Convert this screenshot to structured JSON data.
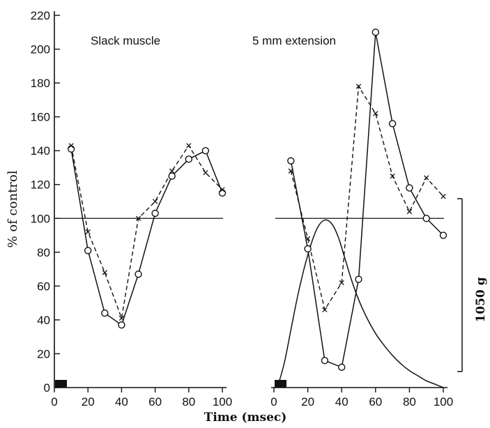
{
  "chart_data": {
    "type": "line",
    "xlabel": "Time (msec)",
    "ylabel": "% of control",
    "scale_bar_label": "1050 g",
    "y_ticks": [
      0,
      20,
      40,
      60,
      80,
      100,
      120,
      140,
      160,
      180,
      200,
      220
    ],
    "x_ticks": [
      0,
      20,
      40,
      60,
      80,
      100
    ],
    "ylim": [
      0,
      220
    ],
    "xlim": [
      0,
      100
    ],
    "reference_line": 100,
    "grid": false,
    "panels": [
      {
        "title": "Slack muscle",
        "series": [
          {
            "style": "solid-circles",
            "x": [
              10,
              20,
              30,
              40,
              50,
              60,
              70,
              80,
              90,
              100
            ],
            "y": [
              141,
              81,
              44,
              37,
              67,
              103,
              125,
              135,
              140,
              115
            ]
          },
          {
            "style": "dashed-crosses",
            "x": [
              10,
              20,
              30,
              40,
              50,
              60,
              70,
              80,
              90,
              100
            ],
            "y": [
              143,
              92,
              68,
              41,
              100,
              110,
              128,
              143,
              127,
              117
            ]
          }
        ]
      },
      {
        "title": "5 mm extension",
        "series": [
          {
            "style": "solid-circles",
            "x": [
              10,
              20,
              30,
              40,
              50,
              60,
              70,
              80,
              90,
              100
            ],
            "y": [
              134,
              82,
              16,
              12,
              64,
              210,
              156,
              118,
              100,
              90
            ]
          },
          {
            "style": "dashed-crosses",
            "x": [
              10,
              20,
              30,
              40,
              50,
              60,
              70,
              80,
              90,
              100
            ],
            "y": [
              128,
              88,
              46,
              62,
              178,
              162,
              125,
              104,
              124,
              113
            ]
          },
          {
            "style": "twitch-curve",
            "x": [
              2,
              6,
              10,
              14,
              18,
              22,
              26,
              30,
              34,
              38,
              42,
              46,
              50,
              55,
              60,
              65,
              70,
              75,
              80,
              85,
              90,
              95,
              100
            ],
            "y": [
              0,
              14,
              34,
              54,
              71,
              85,
              95,
              99,
              97,
              89,
              76,
              63,
              52,
              41,
              32,
              25,
              19,
              14,
              10,
              7,
              4,
              2,
              0
            ]
          }
        ]
      }
    ]
  }
}
